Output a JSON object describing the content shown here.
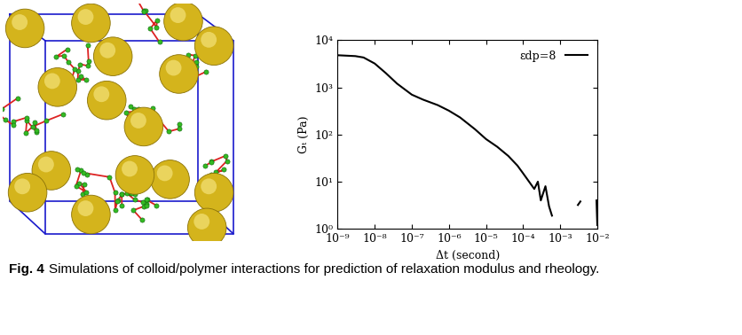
{
  "chart_data": {
    "type": "line",
    "x": [
      1e-09,
      3e-09,
      5e-09,
      1e-08,
      2e-08,
      4e-08,
      1e-07,
      2e-07,
      5e-07,
      1e-06,
      2e-06,
      5e-06,
      1e-05,
      2e-05,
      4e-05,
      7e-05,
      0.0001,
      0.0002,
      0.00025,
      0.0003,
      0.0004,
      0.0005,
      0.0006,
      0.001,
      0.003,
      0.0035,
      0.005,
      0.0095,
      0.01
    ],
    "series": [
      {
        "name": "εdp=8",
        "color": "#000000",
        "values": [
          4800,
          4600,
          4300,
          3200,
          2000,
          1200,
          700,
          550,
          420,
          320,
          230,
          130,
          80,
          55,
          35,
          22,
          15,
          7,
          10,
          4,
          8,
          3,
          1.9,
          null,
          3.2,
          3.8,
          null,
          4,
          1.2
        ]
      }
    ],
    "xlabel": "Δt (second)",
    "ylabel": "Gₜ (Pa)",
    "log": true,
    "xlim": [
      1e-09,
      0.01
    ],
    "ylim": [
      1,
      10000
    ],
    "xticks": [
      {
        "value": 1e-09,
        "label": "10⁻⁹"
      },
      {
        "value": 1e-08,
        "label": "10⁻⁸"
      },
      {
        "value": 1e-07,
        "label": "10⁻⁷"
      },
      {
        "value": 1e-06,
        "label": "10⁻⁶"
      },
      {
        "value": 1e-05,
        "label": "10⁻⁵"
      },
      {
        "value": 0.0001,
        "label": "10⁻⁴"
      },
      {
        "value": 0.001,
        "label": "10⁻³"
      },
      {
        "value": 0.01,
        "label": "10⁻²"
      }
    ],
    "yticks": [
      {
        "value": 1,
        "label": "10⁰"
      },
      {
        "value": 10,
        "label": "10¹"
      },
      {
        "value": 100,
        "label": "10²"
      },
      {
        "value": 1000,
        "label": "10³"
      },
      {
        "value": 10000,
        "label": "10⁴"
      }
    ],
    "legend": "upper right"
  },
  "caption": {
    "label": "Fig. 4",
    "text": "Simulations of colloid/polymer interactions for prediction of relaxation modulus and rheology."
  }
}
